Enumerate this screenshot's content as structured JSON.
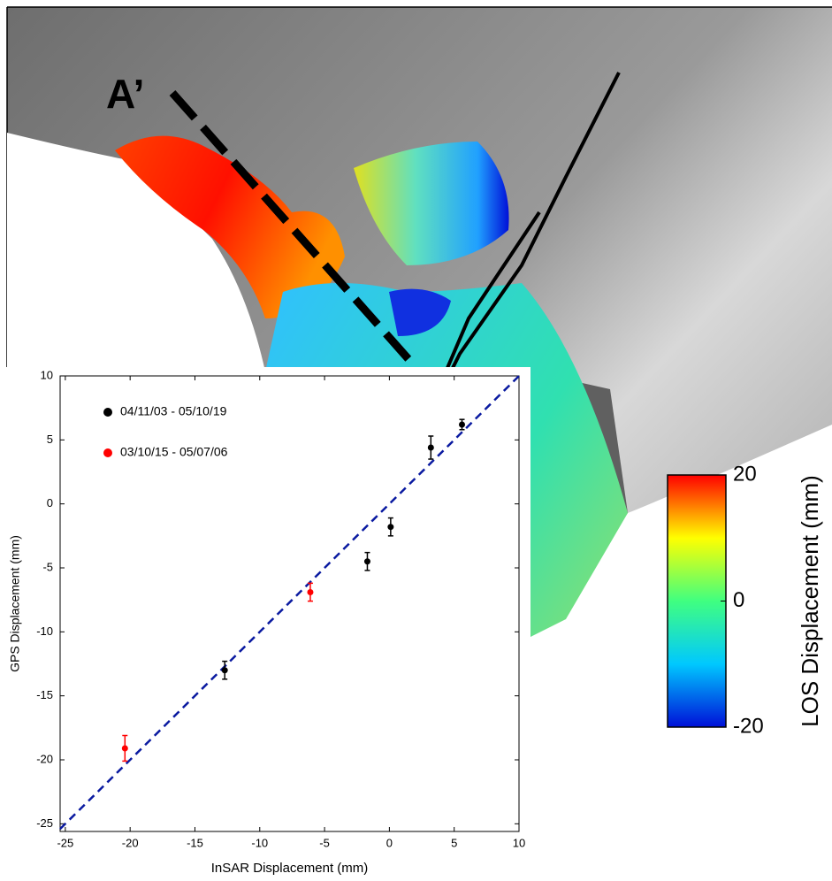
{
  "chart_data": [
    {
      "type": "colorbar",
      "annotation": "A’",
      "label": "LOS Displacement (mm)",
      "ylim": [
        -20,
        20
      ],
      "yticks": [
        20,
        0,
        -20
      ],
      "colors": [
        "#0010d8",
        "#00c8ff",
        "#40ff80",
        "#ffff00",
        "#ff0000"
      ]
    },
    {
      "type": "scatter",
      "xlabel": "InSAR Displacement (mm)",
      "ylabel": "GPS Displacement (mm)",
      "xlim": [
        -25.4,
        10
      ],
      "ylim": [
        -25.6,
        10
      ],
      "xticks": [
        -25,
        -20,
        -15,
        -10,
        -5,
        0,
        5,
        10
      ],
      "yticks": [
        -25,
        -20,
        -15,
        -10,
        -5,
        0,
        5,
        10
      ],
      "identity_line": true,
      "identity_color": "#0a1aa0",
      "series": [
        {
          "name": "04/11/03 - 05/10/19",
          "color": "#000000",
          "x": [
            -12.7,
            -1.7,
            0.1,
            3.2,
            5.6
          ],
          "values": [
            -13.0,
            -4.5,
            -1.8,
            4.4,
            6.2
          ],
          "errors": [
            0.7,
            0.7,
            0.7,
            0.9,
            0.4
          ]
        },
        {
          "name": "03/10/15 - 05/07/06",
          "color": "#ff0000",
          "x": [
            -20.4,
            -6.1
          ],
          "values": [
            -19.1,
            -6.9
          ],
          "errors": [
            1.0,
            0.7
          ]
        }
      ]
    }
  ]
}
